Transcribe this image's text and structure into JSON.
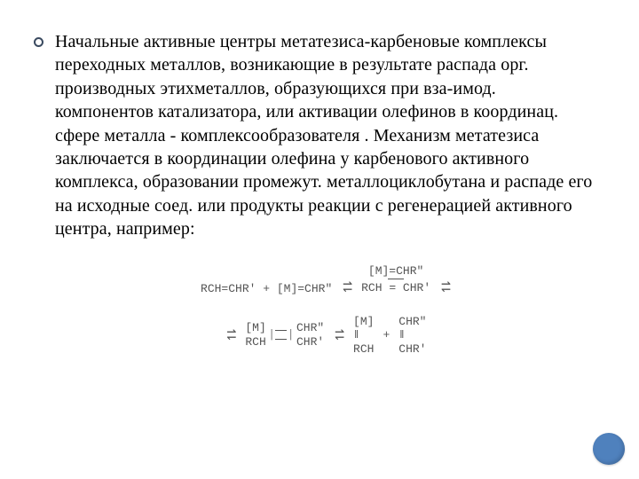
{
  "bullet": {
    "text": "Начальные активные центры метатезиса-карбеновые комплексы переходных  металлов, возникающие в результате распада орг. производных этихметаллов, образующихся при вза-имод. компонентов катализатора, или активации олефинов в координац. сфере металла - комплексообразователя . Механизм метатезиса заключается в координации олефина у карбенового активного комплекса, образовании промежут. металлоциклобутана и распаде его на исходные соед. или продукты реакции с регенерацией активного центра, например:"
  },
  "reaction": {
    "r1_a": "RCH=CHR′ + [M]=CHR″",
    "r1_top1": "[M]=CHR″",
    "r1_bot1": "RCH = CHR′",
    "r2_tl": "[M]",
    "r2_tr": "CHR″",
    "r2_bl": "RCH",
    "r2_br": "CHR′",
    "r2_c1t": "[M]",
    "r2_c1b": "RCH",
    "r2_c2t": "CHR″",
    "r2_c2b": "CHR′",
    "plus": "+"
  },
  "style": {
    "text_color": "#000000",
    "chem_color": "#545454",
    "accent_circle": "#4f81bd",
    "body_fontsize": 20,
    "chem_fontsize": 13
  }
}
